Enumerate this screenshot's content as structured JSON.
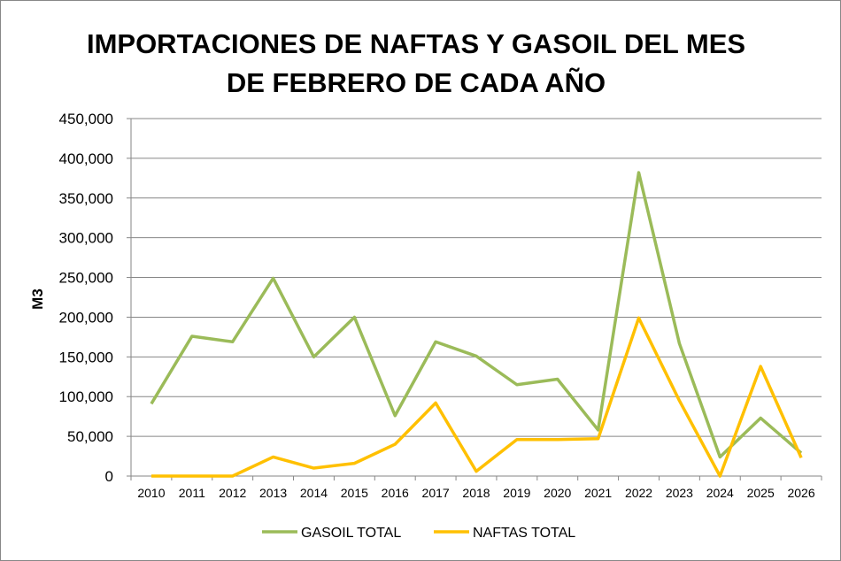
{
  "chart_data": {
    "type": "line",
    "title_lines": [
      "IMPORTACIONES DE NAFTAS Y GASOIL DEL MES",
      "DE FEBRERO DE CADA AÑO"
    ],
    "xlabel": "",
    "ylabel": "M3",
    "ylim": [
      0,
      450000
    ],
    "yticks": [
      0,
      50000,
      100000,
      150000,
      200000,
      250000,
      300000,
      350000,
      400000,
      450000
    ],
    "ytick_labels": [
      "0",
      "50,000",
      "100,000",
      "150,000",
      "200,000",
      "250,000",
      "300,000",
      "350,000",
      "400,000",
      "450,000"
    ],
    "grid": "horizontal",
    "legend_position": "bottom",
    "categories": [
      "2010",
      "2011",
      "2012",
      "2013",
      "2014",
      "2015",
      "2016",
      "2017",
      "2018",
      "2019",
      "2020",
      "2021",
      "2022",
      "2023",
      "2024",
      "2025",
      "2026"
    ],
    "series": [
      {
        "name": "GASOIL TOTAL",
        "color": "#9BBB59",
        "values": [
          91000,
          176000,
          169000,
          249000,
          150000,
          200000,
          76000,
          169000,
          151000,
          115000,
          122000,
          58000,
          382000,
          167000,
          24000,
          73000,
          29000
        ]
      },
      {
        "name": "NAFTAS TOTAL",
        "color": "#FFC000",
        "values": [
          0,
          0,
          0,
          24000,
          10000,
          16000,
          40000,
          92000,
          6000,
          46000,
          46000,
          47000,
          199000,
          95000,
          0,
          138000,
          23000
        ]
      }
    ]
  }
}
